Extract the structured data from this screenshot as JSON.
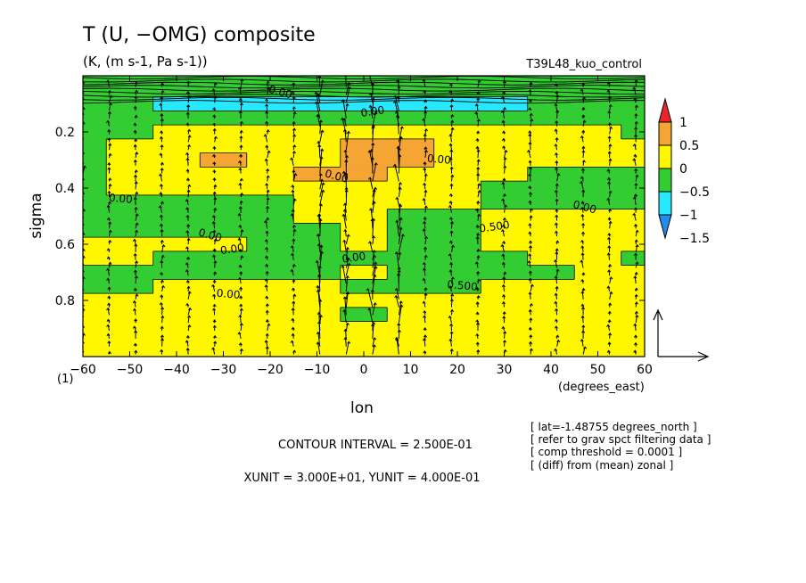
{
  "title": "T (U, −OMG) composite",
  "subtitle": "(K, (m s-1, Pa s-1))",
  "run_name": "T39L48_kuo_control",
  "colorbar": {
    "labels": [
      "1",
      "0.5",
      "0",
      "−0.5",
      "−1",
      "−1.5"
    ],
    "colors": [
      "#e8262b",
      "#f4a533",
      "#fff700",
      "#33cc33",
      "#27e8ff",
      "#1f8cf2"
    ]
  },
  "footer": {
    "contour_interval": "CONTOUR INTERVAL = 2.500E-01",
    "units": "XUNIT = 3.000E+01, YUNIT = 4.000E-01"
  },
  "info_lines": [
    "[ lat=-1.48755 degrees_north ]",
    "[ refer to grav spct filtering data ]",
    "[ comp threshold = 0.0001 ]",
    "[ (diff) from (mean) zonal ]"
  ],
  "contour_labels": [
    "0.00",
    "0.00",
    "0.00",
    "0.00",
    "0.00",
    "0.00",
    "0.00",
    "0.00",
    "0.00",
    "0.00",
    "0.500",
    "0.500"
  ],
  "chart_data": {
    "type": "heatmap",
    "title": "T (U, −OMG) composite",
    "xlabel": "lon",
    "xunits": "(degrees_east)",
    "ylabel": "sigma",
    "ylevel_note": "(1)",
    "xlim": [
      -60,
      60
    ],
    "ylim": [
      1.0,
      0.0
    ],
    "yaxis_inverted": true,
    "xticks": [
      -60,
      -50,
      -40,
      -30,
      -20,
      -10,
      0,
      10,
      20,
      30,
      40,
      50,
      60
    ],
    "yticks": [
      0.2,
      0.4,
      0.6,
      0.8
    ],
    "color_levels": [
      -1.5,
      -1,
      -0.5,
      0,
      0.5,
      1
    ],
    "contour_interval": 0.25,
    "vector_reference": {
      "xunit": 30.0,
      "yunit": 0.4
    },
    "x": [
      -60,
      -50,
      -40,
      -30,
      -20,
      -10,
      0,
      10,
      20,
      30,
      40,
      50,
      60
    ],
    "y": [
      0.05,
      0.1,
      0.15,
      0.2,
      0.25,
      0.3,
      0.35,
      0.4,
      0.45,
      0.5,
      0.55,
      0.6,
      0.65,
      0.7,
      0.75,
      0.8,
      0.85,
      0.9,
      0.95
    ],
    "z": [
      [
        -0.3,
        -0.2,
        -0.3,
        -0.2,
        -0.3,
        -0.2,
        -0.3,
        -0.2,
        -0.3,
        -0.2,
        -0.3,
        -0.2,
        -0.3
      ],
      [
        -0.3,
        -0.4,
        -0.6,
        -0.7,
        -0.9,
        -1.0,
        -0.9,
        -1.0,
        -0.8,
        -0.6,
        -0.5,
        -0.4,
        -0.3
      ],
      [
        -0.3,
        -0.3,
        -0.3,
        -0.4,
        -0.3,
        -0.3,
        -0.2,
        -0.3,
        -0.3,
        -0.3,
        -0.3,
        -0.2,
        -0.2
      ],
      [
        -0.2,
        -0.2,
        0.1,
        0.2,
        0.2,
        0.2,
        0.3,
        0.3,
        0.2,
        0.1,
        0.1,
        0.1,
        -0.2
      ],
      [
        -0.2,
        0.1,
        0.2,
        0.3,
        0.2,
        0.3,
        0.6,
        0.6,
        0.2,
        0.1,
        0.1,
        0.1,
        0.1
      ],
      [
        -0.2,
        0.1,
        0.3,
        0.6,
        0.2,
        0.3,
        0.6,
        0.6,
        0.2,
        0.2,
        0.1,
        0.2,
        0.1
      ],
      [
        -0.2,
        0.1,
        0.2,
        0.3,
        0.2,
        0.6,
        0.6,
        0.2,
        0.1,
        0.1,
        -0.2,
        -0.2,
        -0.2
      ],
      [
        -0.2,
        0.1,
        0.1,
        0.2,
        0.2,
        0.3,
        0.3,
        0.1,
        0.1,
        -0.2,
        -0.2,
        -0.2,
        -0.2
      ],
      [
        -0.2,
        -0.1,
        -0.2,
        -0.2,
        -0.2,
        0.2,
        0.3,
        0.1,
        0.1,
        -0.2,
        -0.2,
        -0.2,
        -0.2
      ],
      [
        -0.2,
        -0.2,
        -0.2,
        -0.2,
        -0.2,
        0.1,
        0.2,
        -0.2,
        -0.2,
        0.1,
        0.1,
        0.1,
        0.1
      ],
      [
        -0.2,
        -0.2,
        -0.2,
        -0.2,
        -0.2,
        -0.2,
        0.1,
        -0.2,
        -0.2,
        0.1,
        0.1,
        0.1,
        0.1
      ],
      [
        0.1,
        0.1,
        0.1,
        0.1,
        -0.2,
        -0.2,
        0.1,
        -0.2,
        -0.2,
        0.1,
        0.1,
        0.1,
        0.1
      ],
      [
        0.1,
        0.1,
        -0.2,
        -0.2,
        -0.2,
        -0.2,
        -0.2,
        -0.2,
        -0.2,
        -0.2,
        0.1,
        0.1,
        -0.2
      ],
      [
        -0.2,
        -0.2,
        -0.2,
        -0.2,
        -0.2,
        -0.2,
        0.1,
        -0.2,
        -0.2,
        -0.2,
        -0.2,
        0.1,
        0.1
      ],
      [
        -0.2,
        -0.2,
        0.1,
        0.1,
        0.1,
        0.1,
        -0.2,
        -0.2,
        -0.2,
        0.1,
        0.1,
        0.1,
        0.1
      ],
      [
        0.1,
        0.1,
        0.1,
        0.1,
        0.1,
        0.1,
        0.1,
        0.1,
        0.1,
        0.1,
        0.1,
        0.1,
        0.1
      ],
      [
        0.1,
        0.1,
        0.1,
        0.1,
        0.1,
        0.1,
        -0.2,
        0.1,
        0.1,
        0.1,
        0.1,
        0.1,
        0.1
      ],
      [
        0.1,
        0.1,
        0.1,
        0.1,
        0.1,
        0.1,
        0.1,
        0.1,
        0.1,
        0.1,
        0.1,
        0.1,
        0.1
      ],
      [
        0.1,
        0.1,
        0.1,
        0.1,
        0.1,
        0.1,
        0.1,
        0.1,
        0.1,
        0.1,
        0.1,
        0.1,
        0.1
      ]
    ]
  }
}
